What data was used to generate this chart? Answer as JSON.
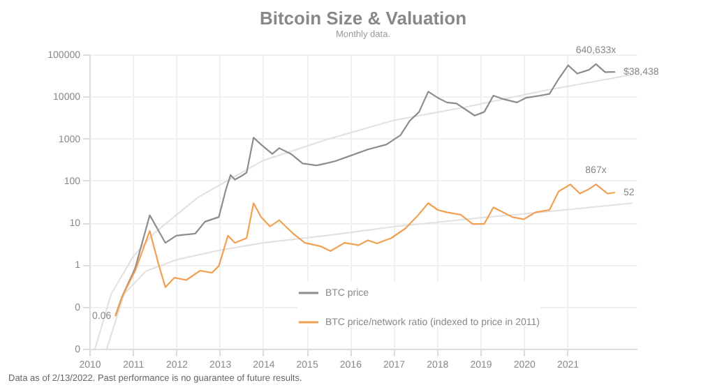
{
  "chart_data": {
    "type": "line",
    "title": "Bitcoin Size & Valuation",
    "subtitle": "Monthly data.",
    "x": [
      2010.6,
      2010.75,
      2011.05,
      2011.39,
      2011.75,
      2012.0,
      2012.44,
      2012.66,
      2012.98,
      2013.14,
      2013.25,
      2013.35,
      2013.51,
      2013.62,
      2013.78,
      2013.95,
      2014.21,
      2014.37,
      2014.64,
      2014.91,
      2015.23,
      2015.44,
      2015.66,
      2015.98,
      2016.41,
      2016.84,
      2017.16,
      2017.37,
      2017.59,
      2017.8,
      2018.02,
      2018.23,
      2018.45,
      2018.66,
      2018.87,
      2019.09,
      2019.3,
      2019.52,
      2019.84,
      2020.05,
      2020.38,
      2020.59,
      2020.8,
      2021.02,
      2021.23,
      2021.5,
      2021.66,
      2021.87,
      2022.1
    ],
    "series": [
      {
        "name": "BTC price",
        "color": "#8c8c8c",
        "values": [
          0.06,
          0.17,
          0.8,
          15,
          3.3,
          4.9,
          5.5,
          10.5,
          13.6,
          60,
          135,
          105,
          130,
          155,
          1050,
          720,
          430,
          590,
          430,
          255,
          230,
          255,
          290,
          380,
          550,
          720,
          1200,
          2600,
          4300,
          13000,
          9300,
          7200,
          6800,
          4900,
          3500,
          4300,
          10500,
          8700,
          7200,
          9300,
          10500,
          11500,
          26000,
          55000,
          35000,
          43000,
          59000,
          38000,
          38438
        ]
      },
      {
        "name": "BTC price/network ratio (indexed to price in 2011)",
        "color": "#f0a050",
        "x": [
          2010.6,
          2010.75,
          2011.05,
          2011.39,
          2011.59,
          2011.75,
          2011.96,
          2012.23,
          2012.55,
          2012.82,
          2012.98,
          2013.19,
          2013.35,
          2013.62,
          2013.78,
          2013.95,
          2014.16,
          2014.37,
          2014.69,
          2014.96,
          2015.34,
          2015.55,
          2015.87,
          2016.2,
          2016.41,
          2016.62,
          2016.95,
          2017.27,
          2017.53,
          2017.8,
          2018.02,
          2018.23,
          2018.55,
          2018.82,
          2019.09,
          2019.3,
          2019.52,
          2019.73,
          2020.0,
          2020.27,
          2020.59,
          2020.8,
          2021.07,
          2021.29,
          2021.5,
          2021.66,
          2021.93,
          2022.1
        ],
        "values": [
          0.06,
          0.17,
          0.7,
          6.3,
          1.05,
          0.29,
          0.49,
          0.43,
          0.72,
          0.64,
          0.93,
          4.9,
          3.3,
          4.3,
          29,
          13.6,
          8.1,
          11.4,
          5.5,
          3.3,
          2.7,
          2.1,
          3.3,
          2.9,
          3.8,
          3.2,
          4.3,
          7.2,
          13.6,
          29,
          20,
          17.6,
          15.4,
          9.3,
          9.3,
          23,
          17.6,
          13.6,
          12,
          17.6,
          20,
          55,
          81,
          49,
          63,
          81,
          49,
          52
        ]
      },
      {
        "type": "line",
        "color": "#e2e2e2",
        "x": [
          2010.13,
          2010.5,
          2011,
          2011.48,
          2012.5,
          2014,
          2015.44,
          2017,
          2018.66,
          2020.5,
          2022.5
        ],
        "values": [
          0.01,
          0.2,
          1.5,
          5.5,
          40,
          300,
          930,
          2700,
          5600,
          14000,
          33000
        ]
      },
      {
        "type": "line",
        "color": "#e2e2e2",
        "x": [
          2010.4,
          2010.8,
          2011.3,
          2012,
          2013,
          2014,
          2015.5,
          2017,
          2019,
          2020.5,
          2022.5
        ],
        "values": [
          0.01,
          0.2,
          0.7,
          1.3,
          2.2,
          3.3,
          5,
          8,
          13,
          18,
          29
        ]
      }
    ],
    "xlim": [
      2010,
      2022.6
    ],
    "xticks": [
      2010,
      2011,
      2012,
      2013,
      2014,
      2015,
      2016,
      2017,
      2018,
      2019,
      2020,
      2021
    ],
    "ylim": [
      0.01,
      100000
    ],
    "yticks": [
      {
        "value": 0.01,
        "label": "0"
      },
      {
        "value": 0.1,
        "label": "0"
      },
      1,
      10,
      100,
      1000,
      10000,
      100000
    ],
    "log": true,
    "grid": true,
    "legend": "bottom",
    "annotations": [
      {
        "text": "640,633x",
        "x": 2021.66,
        "y": 59000
      },
      {
        "text": "$38,438",
        "x": 2022.1,
        "y": 38438
      },
      {
        "text": "867x",
        "x": 2021.66,
        "y": 81
      },
      {
        "text": "52",
        "x": 2022.1,
        "y": 52
      },
      {
        "text": "0.06",
        "x": 2010.6,
        "y": 0.06
      },
      "Data as of 2/13/2022. Past performance is no guarantee of future results."
    ]
  }
}
